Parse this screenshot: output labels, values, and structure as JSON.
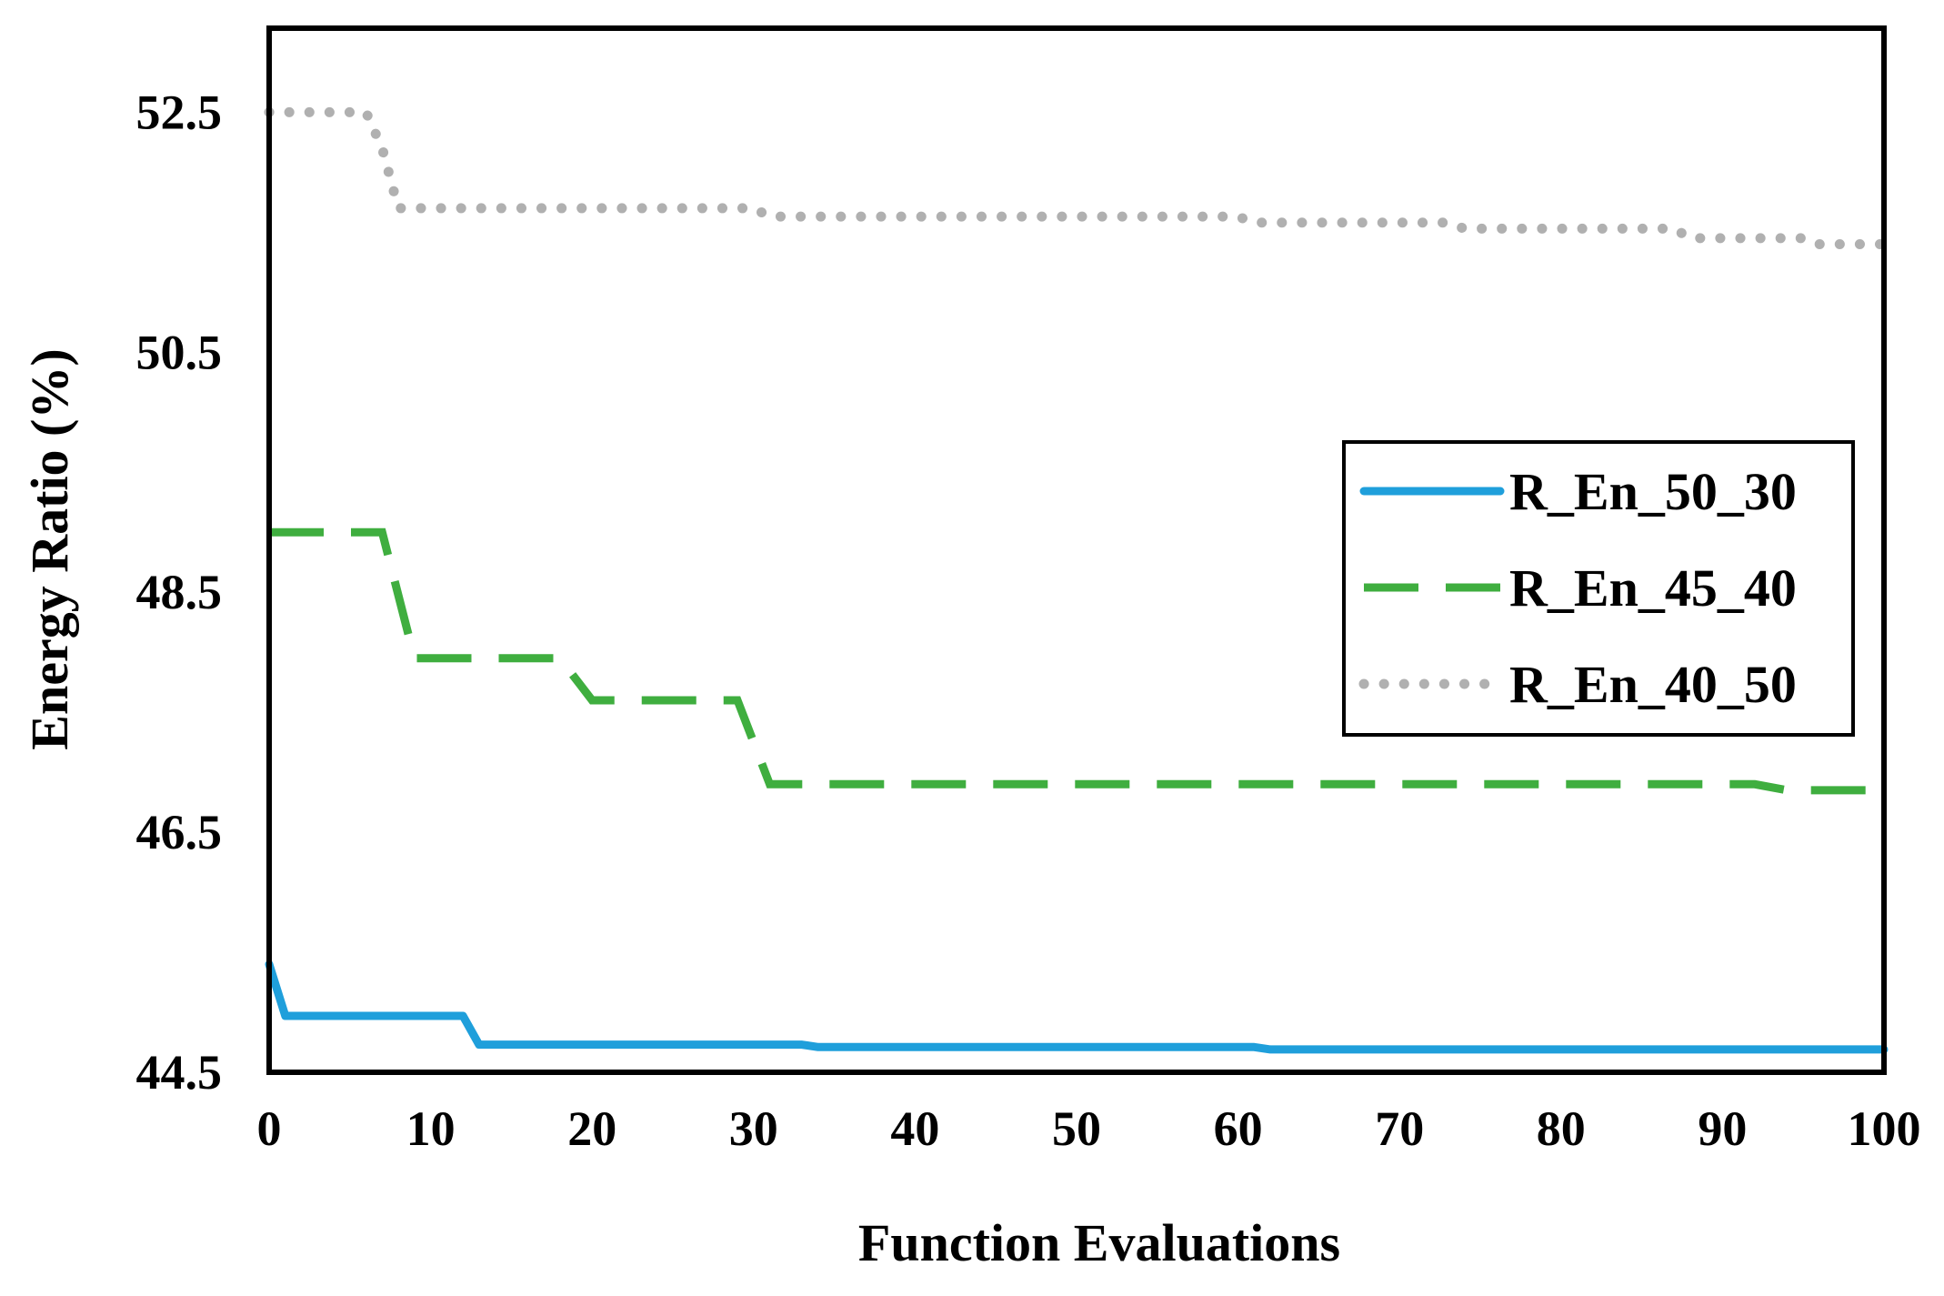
{
  "chart_data": {
    "type": "line",
    "title": "",
    "xlabel": "Function Evaluations",
    "ylabel": "Energy Ratio (%)",
    "xlim": [
      0,
      100
    ],
    "ylim": [
      44.5,
      53.2
    ],
    "xticks": [
      "0",
      "10",
      "20",
      "30",
      "40",
      "50",
      "60",
      "70",
      "80",
      "90",
      "100"
    ],
    "yticks": [
      "44.5",
      "46.5",
      "48.5",
      "50.5",
      "52.5"
    ],
    "grid": false,
    "legend_position": "center-right",
    "colors": {
      "R_En_50_30": "#1f9fdb",
      "R_En_45_40": "#3fae3f",
      "R_En_40_50": "#b0b0b0",
      "frame": "#000000"
    },
    "series": [
      {
        "name": "R_En_50_30",
        "style": "solid",
        "x": [
          0,
          1,
          12,
          13,
          33,
          34,
          61,
          62,
          100
        ],
        "y": [
          45.4,
          44.97,
          44.97,
          44.73,
          44.73,
          44.71,
          44.71,
          44.69,
          44.69
        ]
      },
      {
        "name": "R_En_45_40",
        "style": "dashed",
        "x": [
          0,
          7,
          9,
          18,
          20,
          29,
          31,
          92,
          94,
          100
        ],
        "y": [
          49.0,
          49.0,
          47.95,
          47.95,
          47.6,
          47.6,
          46.9,
          46.9,
          46.85,
          46.85
        ]
      },
      {
        "name": "R_En_40_50",
        "style": "dotted",
        "x": [
          0,
          6,
          7,
          8,
          30,
          31,
          60,
          61,
          73,
          74,
          87,
          88,
          95,
          96,
          100
        ],
        "y": [
          52.5,
          52.5,
          52.2,
          51.7,
          51.7,
          51.63,
          51.63,
          51.58,
          51.58,
          51.53,
          51.53,
          51.45,
          51.45,
          51.4,
          51.4
        ]
      }
    ]
  }
}
